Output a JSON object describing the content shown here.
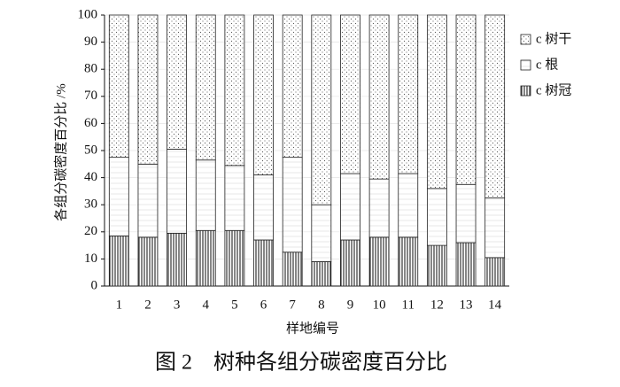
{
  "chart_data": {
    "type": "stacked_bar",
    "x_label": "样地编号",
    "y_label": "各组分碳密度百分比 /%",
    "caption": "图 2　树种各组分碳密度百分比",
    "categories": [
      "1",
      "2",
      "3",
      "4",
      "5",
      "6",
      "7",
      "8",
      "9",
      "10",
      "11",
      "12",
      "13",
      "14"
    ],
    "series": [
      {
        "name": "c 树冠",
        "pattern": "stripes",
        "values": [
          18.5,
          18,
          19.5,
          20.5,
          20.5,
          17,
          12.5,
          9,
          17,
          18,
          18,
          15,
          16,
          10.5
        ]
      },
      {
        "name": "c 根",
        "pattern": "hlines",
        "values": [
          29,
          27,
          31,
          26,
          24,
          24,
          35,
          21,
          24.5,
          21.5,
          23.5,
          21,
          21.5,
          22
        ]
      },
      {
        "name": "c 树干",
        "pattern": "dots",
        "values": [
          52.5,
          55,
          49.5,
          53.5,
          55.5,
          59,
          52.5,
          70,
          58.5,
          60.5,
          58.5,
          64,
          62.5,
          67.5
        ]
      }
    ],
    "ylim": [
      0,
      100
    ],
    "yticks": [
      0,
      10,
      20,
      30,
      40,
      50,
      60,
      70,
      80,
      90,
      100
    ],
    "grid": true,
    "legend": "right"
  }
}
